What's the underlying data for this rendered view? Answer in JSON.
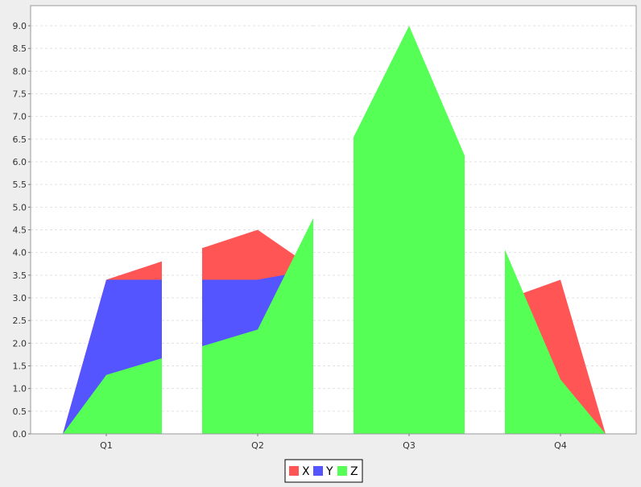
{
  "chart_data": {
    "type": "area",
    "categories": [
      "Q1",
      "Q2",
      "Q3",
      "Q4"
    ],
    "ylim": [
      0,
      9
    ],
    "yticks": [
      "0.0",
      "0.5",
      "1.0",
      "1.5",
      "2.0",
      "2.5",
      "3.0",
      "3.5",
      "4.0",
      "4.5",
      "5.0",
      "5.5",
      "6.0",
      "6.5",
      "7.0",
      "7.5",
      "8.0",
      "8.5",
      "9.0"
    ],
    "grid": true,
    "legend_position": "bottom-center",
    "series": [
      {
        "name": "X",
        "color": "#ff5555",
        "values": [
          3.4,
          4.5,
          2.2,
          3.4
        ]
      },
      {
        "name": "Y",
        "color": "#5555ff",
        "values": [
          3.4,
          3.4,
          4.0,
          1.1
        ]
      },
      {
        "name": "Z",
        "color": "#55ff55",
        "values": [
          1.3,
          2.3,
          9.0,
          1.2
        ]
      }
    ]
  }
}
